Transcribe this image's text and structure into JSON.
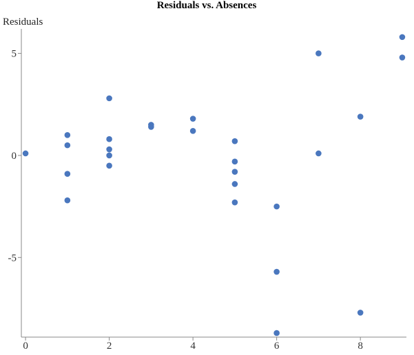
{
  "chart_data": {
    "type": "scatter",
    "title": "Residuals vs. Absences",
    "xlabel": "",
    "ylabel": "Residuals",
    "xlim": [
      -0.1,
      9.1
    ],
    "ylim": [
      -8.9,
      6.2
    ],
    "xticks": [
      0,
      2,
      4,
      6,
      8
    ],
    "yticks": [
      5,
      0,
      -5
    ],
    "grid": false,
    "point_color": "#4a77be",
    "points": [
      {
        "x": 0,
        "y": 0.1
      },
      {
        "x": 1,
        "y": 1.0
      },
      {
        "x": 1,
        "y": 0.5
      },
      {
        "x": 1,
        "y": -0.9
      },
      {
        "x": 1,
        "y": -2.2
      },
      {
        "x": 2,
        "y": 2.8
      },
      {
        "x": 2,
        "y": 0.8
      },
      {
        "x": 2,
        "y": 0.3
      },
      {
        "x": 2,
        "y": 0.0
      },
      {
        "x": 2,
        "y": -0.5
      },
      {
        "x": 3,
        "y": 1.5
      },
      {
        "x": 3,
        "y": 1.4
      },
      {
        "x": 4,
        "y": 1.8
      },
      {
        "x": 4,
        "y": 1.2
      },
      {
        "x": 5,
        "y": 0.7
      },
      {
        "x": 5,
        "y": -0.3
      },
      {
        "x": 5,
        "y": -0.8
      },
      {
        "x": 5,
        "y": -1.4
      },
      {
        "x": 5,
        "y": -2.3
      },
      {
        "x": 6,
        "y": -2.5
      },
      {
        "x": 6,
        "y": -5.7
      },
      {
        "x": 6,
        "y": -8.7
      },
      {
        "x": 7,
        "y": 5.0
      },
      {
        "x": 7,
        "y": 0.1
      },
      {
        "x": 8,
        "y": 1.9
      },
      {
        "x": 8,
        "y": -7.7
      },
      {
        "x": 9,
        "y": 5.8
      },
      {
        "x": 9,
        "y": 4.8
      }
    ]
  }
}
